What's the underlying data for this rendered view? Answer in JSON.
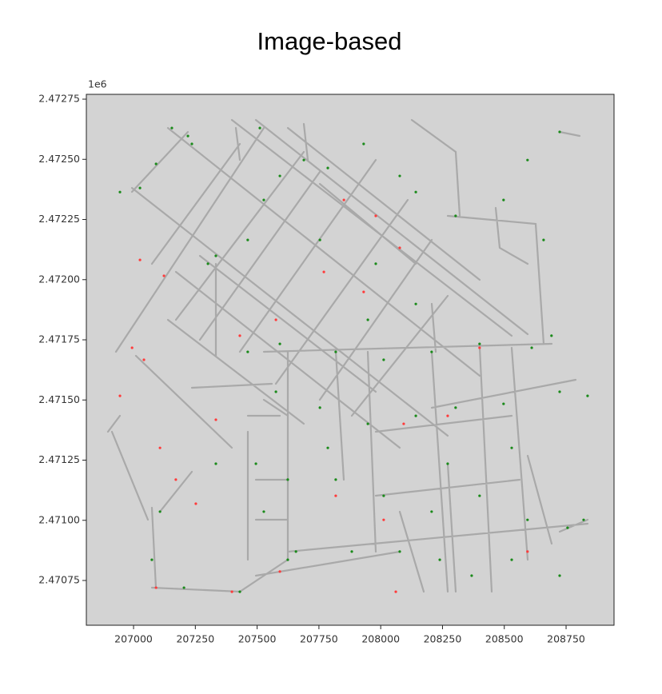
{
  "chart_data": {
    "type": "scatter",
    "title": "Image-based",
    "y_offset_label": "1e6",
    "xlim": [
      206809,
      208944
    ],
    "ylim": [
      2470564,
      2472770
    ],
    "xticks": [
      207000,
      207250,
      207500,
      207750,
      208000,
      208250,
      208500,
      208750
    ],
    "yticks": [
      {
        "value": 2470750,
        "label": "2.47075"
      },
      {
        "value": 2471000,
        "label": "2.47100"
      },
      {
        "value": 2471250,
        "label": "2.47125"
      },
      {
        "value": 2471500,
        "label": "2.47150"
      },
      {
        "value": 2471750,
        "label": "2.47175"
      },
      {
        "value": 2472000,
        "label": "2.47200"
      },
      {
        "value": 2472250,
        "label": "2.47225"
      },
      {
        "value": 2472500,
        "label": "2.47250"
      },
      {
        "value": 2472750,
        "label": "2.47275"
      }
    ],
    "grid": false,
    "series": [
      {
        "color": "#1a8a1a",
        "x": [
          207155,
          207220,
          207236,
          207091,
          206945,
          207026,
          207301,
          207333,
          207462,
          207527,
          207592,
          207689,
          207511,
          207786,
          207931,
          208077,
          208142,
          208303,
          208497,
          208594,
          208724,
          208659,
          208691,
          208611,
          208400,
          208206,
          208012,
          207818,
          207592,
          207462,
          207576,
          207754,
          207948,
          208142,
          208303,
          208497,
          208724,
          208837,
          207495,
          207624,
          207818,
          208012,
          208206,
          208400,
          208594,
          208756,
          208821,
          207107,
          207074,
          207204,
          207430,
          207657,
          207883,
          208077,
          208239,
          208368,
          208530,
          208724,
          208530,
          208271,
          207786,
          207527,
          207624,
          207333,
          207948,
          208142,
          207754,
          207980
        ],
        "y": [
          2472630,
          2472597,
          2472564,
          2472481,
          2472364,
          2472381,
          2472066,
          2472099,
          2472165,
          2472331,
          2472431,
          2472497,
          2472630,
          2472464,
          2472564,
          2472431,
          2472364,
          2472265,
          2472331,
          2472497,
          2472614,
          2472165,
          2471767,
          2471717,
          2471733,
          2471700,
          2471667,
          2471700,
          2471733,
          2471700,
          2471534,
          2471468,
          2471401,
          2471434,
          2471468,
          2471484,
          2471534,
          2471517,
          2471235,
          2471169,
          2471169,
          2471102,
          2471036,
          2471102,
          2471002,
          2470969,
          2471002,
          2471036,
          2470836,
          2470720,
          2470703,
          2470870,
          2470870,
          2470870,
          2470836,
          2470770,
          2470836,
          2470770,
          2471301,
          2471235,
          2471301,
          2471036,
          2470836,
          2471235,
          2471833,
          2471899,
          2472165,
          2472066
        ]
      },
      {
        "color": "#ff3b3b",
        "x": [
          207026,
          207123,
          206994,
          207042,
          206945,
          207107,
          207171,
          207252,
          207430,
          207576,
          207770,
          207931,
          208077,
          207851,
          207980,
          208093,
          208400,
          208594,
          208012,
          208061,
          207818,
          207592,
          207398,
          207091,
          207333,
          208271
        ],
        "y": [
          2472082,
          2472016,
          2471717,
          2471667,
          2471517,
          2471301,
          2471169,
          2471069,
          2471767,
          2471833,
          2472032,
          2471949,
          2472132,
          2472331,
          2472265,
          2471401,
          2471717,
          2470870,
          2471002,
          2470703,
          2471102,
          2470787,
          2470703,
          2470720,
          2471418,
          2471434
        ]
      }
    ]
  }
}
